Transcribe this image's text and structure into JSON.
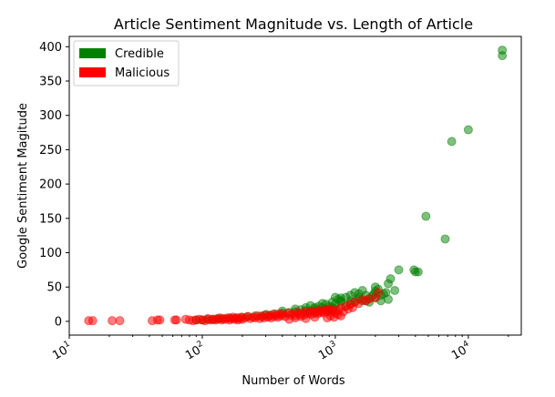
{
  "chart_data": {
    "type": "scatter",
    "title": "Article Sentiment Magnitude vs. Length of Article",
    "xlabel": "Number of Words",
    "ylabel": "Google Sentiment Magitude",
    "x_scale": "log",
    "xlim": [
      10,
      25000
    ],
    "ylim": [
      -20,
      415
    ],
    "x_ticks": [
      {
        "value": 10,
        "base": "10",
        "exp": "1"
      },
      {
        "value": 100,
        "base": "10",
        "exp": "2"
      },
      {
        "value": 1000,
        "base": "10",
        "exp": "3"
      },
      {
        "value": 10000,
        "base": "10",
        "exp": "4"
      }
    ],
    "y_ticks": [
      0,
      50,
      100,
      150,
      200,
      250,
      300,
      350,
      400
    ],
    "grid": false,
    "legend_placement": "top-left",
    "legend": [
      {
        "label": "Credible",
        "color": "#008000"
      },
      {
        "label": "Malicious",
        "color": "#ff0000"
      }
    ],
    "series": [
      {
        "name": "Credible",
        "color": "#008000",
        "points": [
          [
            18000,
            395
          ],
          [
            18000,
            387
          ],
          [
            7500,
            262
          ],
          [
            10000,
            279
          ],
          [
            4800,
            153
          ],
          [
            6700,
            120
          ],
          [
            3900,
            75
          ],
          [
            4200,
            72
          ],
          [
            4000,
            72
          ],
          [
            3000,
            75
          ],
          [
            2800,
            45
          ],
          [
            2600,
            62
          ],
          [
            2500,
            55
          ],
          [
            2500,
            32
          ],
          [
            2300,
            40
          ],
          [
            2200,
            38
          ],
          [
            2100,
            47
          ],
          [
            2000,
            50
          ],
          [
            2000,
            44
          ],
          [
            1950,
            40
          ],
          [
            1900,
            37
          ],
          [
            1800,
            33
          ],
          [
            1700,
            30
          ],
          [
            1600,
            45
          ],
          [
            1500,
            40
          ],
          [
            1500,
            35
          ],
          [
            1400,
            42
          ],
          [
            1300,
            38
          ],
          [
            1300,
            30
          ],
          [
            1200,
            35
          ],
          [
            1100,
            28
          ],
          [
            1100,
            34
          ],
          [
            1050,
            32
          ],
          [
            1000,
            35
          ],
          [
            1000,
            25
          ],
          [
            950,
            28
          ],
          [
            900,
            22
          ],
          [
            850,
            25
          ],
          [
            800,
            20
          ],
          [
            800,
            26
          ],
          [
            750,
            22
          ],
          [
            700,
            18
          ],
          [
            650,
            23
          ],
          [
            600,
            16
          ],
          [
            600,
            20
          ],
          [
            550,
            17
          ],
          [
            500,
            14
          ],
          [
            500,
            18
          ],
          [
            450,
            13
          ],
          [
            400,
            12
          ],
          [
            400,
            15
          ],
          [
            350,
            11
          ],
          [
            320,
            9
          ],
          [
            300,
            10
          ],
          [
            280,
            8
          ],
          [
            250,
            8
          ],
          [
            220,
            7
          ],
          [
            200,
            6
          ],
          [
            180,
            5
          ],
          [
            160,
            5
          ],
          [
            140,
            4
          ],
          [
            130,
            4
          ],
          [
            120,
            3
          ],
          [
            110,
            3
          ],
          [
            100,
            2
          ],
          [
            90,
            2
          ],
          [
            1200,
            22
          ],
          [
            1400,
            28
          ],
          [
            1600,
            30
          ],
          [
            1800,
            28
          ],
          [
            2200,
            30
          ],
          [
            1000,
            18
          ],
          [
            900,
            16
          ],
          [
            1300,
            25
          ],
          [
            700,
            20
          ],
          [
            1500,
            32
          ],
          [
            1700,
            38
          ],
          [
            2400,
            42
          ],
          [
            2000,
            35
          ],
          [
            1100,
            30
          ],
          [
            850,
            18
          ],
          [
            950,
            20
          ],
          [
            650,
            15
          ],
          [
            750,
            16
          ]
        ]
      },
      {
        "name": "Malicious",
        "color": "#ff0000",
        "points": [
          [
            14,
            1
          ],
          [
            15,
            1
          ],
          [
            21,
            1
          ],
          [
            24,
            1
          ],
          [
            42,
            1
          ],
          [
            46,
            2
          ],
          [
            48,
            2
          ],
          [
            62,
            2
          ],
          [
            64,
            2
          ],
          [
            75,
            3
          ],
          [
            80,
            2
          ],
          [
            85,
            1
          ],
          [
            90,
            2
          ],
          [
            95,
            3
          ],
          [
            100,
            2
          ],
          [
            105,
            1
          ],
          [
            110,
            4
          ],
          [
            115,
            2
          ],
          [
            120,
            3
          ],
          [
            125,
            2
          ],
          [
            130,
            3
          ],
          [
            135,
            5
          ],
          [
            140,
            2
          ],
          [
            145,
            4
          ],
          [
            150,
            3
          ],
          [
            155,
            5
          ],
          [
            160,
            2
          ],
          [
            165,
            4
          ],
          [
            170,
            6
          ],
          [
            175,
            3
          ],
          [
            180,
            5
          ],
          [
            185,
            2
          ],
          [
            190,
            4
          ],
          [
            195,
            6
          ],
          [
            200,
            3
          ],
          [
            210,
            5
          ],
          [
            220,
            7
          ],
          [
            230,
            4
          ],
          [
            240,
            6
          ],
          [
            250,
            5
          ],
          [
            260,
            8
          ],
          [
            270,
            4
          ],
          [
            280,
            7
          ],
          [
            290,
            5
          ],
          [
            300,
            9
          ],
          [
            310,
            6
          ],
          [
            320,
            8
          ],
          [
            330,
            5
          ],
          [
            340,
            10
          ],
          [
            350,
            7
          ],
          [
            360,
            9
          ],
          [
            370,
            6
          ],
          [
            380,
            11
          ],
          [
            390,
            8
          ],
          [
            400,
            10
          ],
          [
            420,
            7
          ],
          [
            440,
            12
          ],
          [
            460,
            9
          ],
          [
            480,
            11
          ],
          [
            500,
            8
          ],
          [
            520,
            13
          ],
          [
            540,
            10
          ],
          [
            560,
            12
          ],
          [
            580,
            9
          ],
          [
            600,
            14
          ],
          [
            620,
            11
          ],
          [
            640,
            13
          ],
          [
            660,
            10
          ],
          [
            680,
            15
          ],
          [
            700,
            12
          ],
          [
            720,
            14
          ],
          [
            740,
            11
          ],
          [
            760,
            16
          ],
          [
            780,
            13
          ],
          [
            800,
            15
          ],
          [
            820,
            12
          ],
          [
            840,
            17
          ],
          [
            860,
            14
          ],
          [
            880,
            16
          ],
          [
            900,
            18
          ],
          [
            920,
            13
          ],
          [
            950,
            17
          ],
          [
            980,
            15
          ],
          [
            1000,
            12
          ],
          [
            1050,
            16
          ],
          [
            1100,
            20
          ],
          [
            1150,
            14
          ],
          [
            1200,
            22
          ],
          [
            1250,
            18
          ],
          [
            1300,
            25
          ],
          [
            1350,
            20
          ],
          [
            1400,
            28
          ],
          [
            1500,
            26
          ],
          [
            1600,
            32
          ],
          [
            1700,
            30
          ],
          [
            1800,
            33
          ],
          [
            2000,
            34
          ],
          [
            2100,
            42
          ],
          [
            870,
            5
          ],
          [
            920,
            8
          ],
          [
            980,
            6
          ],
          [
            1050,
            10
          ],
          [
            1100,
            8
          ],
          [
            700,
            6
          ],
          [
            600,
            4
          ],
          [
            500,
            5
          ],
          [
            450,
            3
          ],
          [
            550,
            7
          ]
        ]
      }
    ]
  }
}
